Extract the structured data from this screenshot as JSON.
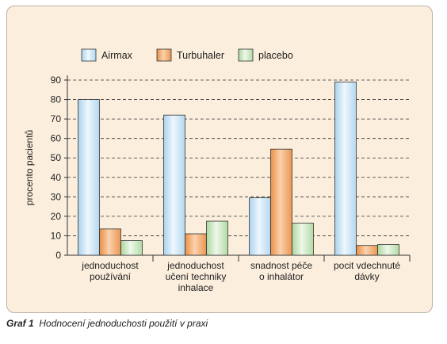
{
  "caption": {
    "label": "Graf 1",
    "text": "Hodnocení jednoduchosti použití v praxi"
  },
  "chart_data": {
    "type": "bar",
    "ylabel": "procento pacientů",
    "xlabel": "",
    "ylim": [
      0,
      90
    ],
    "yticks": [
      0,
      10,
      20,
      30,
      40,
      50,
      60,
      70,
      80,
      90
    ],
    "grid": true,
    "legend_position": "top",
    "categories": [
      [
        "jednoduchost",
        "používání"
      ],
      [
        "jednoduchost",
        "učení techniky",
        "inhalace"
      ],
      [
        "snadnost péče",
        "o inhalátor"
      ],
      [
        "pocit vdechnuté",
        "dávky"
      ]
    ],
    "series": [
      {
        "name": "Airmax",
        "values": [
          80,
          72,
          29.5,
          89
        ],
        "color": "#cfe6f6"
      },
      {
        "name": "Turbuhaler",
        "values": [
          13.5,
          11,
          54.5,
          5
        ],
        "color": "#f2b27a"
      },
      {
        "name": "placebo",
        "values": [
          7.5,
          17.5,
          16.5,
          5.5
        ],
        "color": "#cde8c4"
      }
    ]
  }
}
